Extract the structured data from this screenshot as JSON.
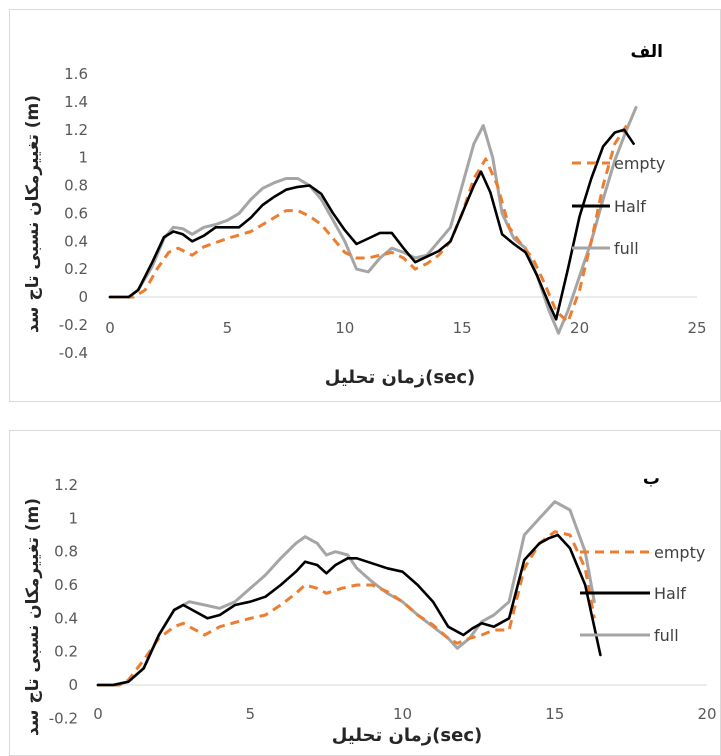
{
  "chart_data": [
    {
      "type": "line",
      "panel_label": "الف",
      "xlabel": "زمان تحلیل(sec)",
      "ylabel": "تغییرمکان نسبی تاج سد (m)",
      "xlim": [
        0,
        25
      ],
      "ylim": [
        -0.4,
        1.6
      ],
      "x_ticks": [
        "0",
        "5",
        "10",
        "15",
        "20",
        "25"
      ],
      "y_ticks": [
        "-0.4",
        "-0.2",
        "0",
        "0.2",
        "0.4",
        "0.6",
        "0.8",
        "1",
        "1.2",
        "1.4",
        "1.6"
      ],
      "grid": false,
      "legend_position": "right",
      "series": [
        {
          "name": "empty",
          "color": "#ed7d31",
          "dash": true,
          "x": [
            0,
            1,
            1.5,
            2,
            2.5,
            2.9,
            3.5,
            4,
            5,
            6,
            7,
            7.5,
            8,
            8.5,
            9,
            9.5,
            10,
            10.5,
            11,
            11.5,
            12,
            12.5,
            13,
            13.5,
            14,
            14.5,
            15,
            15.5,
            16,
            16.5,
            17,
            17.5,
            18,
            18.5,
            19,
            19.5,
            20,
            20.5,
            21,
            21.5,
            22
          ],
          "y": [
            0,
            0,
            0.05,
            0.2,
            0.32,
            0.35,
            0.3,
            0.36,
            0.42,
            0.47,
            0.57,
            0.62,
            0.62,
            0.58,
            0.52,
            0.42,
            0.32,
            0.28,
            0.28,
            0.3,
            0.32,
            0.28,
            0.2,
            0.24,
            0.3,
            0.4,
            0.6,
            0.85,
            0.99,
            0.8,
            0.5,
            0.38,
            0.28,
            0.1,
            -0.1,
            -0.18,
            0.05,
            0.4,
            0.8,
            1.1,
            1.23
          ]
        },
        {
          "name": "Half",
          "color": "#000000",
          "dash": false,
          "x": [
            0,
            0.8,
            1.2,
            1.8,
            2.3,
            2.7,
            3.1,
            3.5,
            4,
            4.5,
            5.5,
            6,
            6.5,
            7,
            7.5,
            8,
            8.5,
            9,
            9.5,
            10,
            10.5,
            11,
            11.5,
            12,
            12.5,
            13,
            13.5,
            14,
            14.5,
            15,
            15.5,
            15.8,
            16.2,
            16.7,
            17.2,
            17.7,
            18.2,
            18.7,
            19,
            19.5,
            20,
            20.5,
            21,
            21.5,
            21.9,
            22.3
          ],
          "y": [
            0,
            0,
            0.05,
            0.25,
            0.43,
            0.47,
            0.45,
            0.4,
            0.44,
            0.5,
            0.5,
            0.57,
            0.66,
            0.72,
            0.77,
            0.79,
            0.8,
            0.74,
            0.6,
            0.48,
            0.38,
            0.42,
            0.46,
            0.46,
            0.35,
            0.25,
            0.29,
            0.33,
            0.4,
            0.6,
            0.8,
            0.9,
            0.75,
            0.45,
            0.38,
            0.32,
            0.15,
            -0.05,
            -0.16,
            0.2,
            0.58,
            0.85,
            1.08,
            1.18,
            1.2,
            1.1
          ]
        },
        {
          "name": "full",
          "color": "#a5a5a5",
          "dash": false,
          "x": [
            0,
            0.8,
            1.2,
            1.8,
            2.3,
            2.7,
            3.1,
            3.5,
            4,
            4.5,
            5,
            5.5,
            6,
            6.5,
            7,
            7.5,
            8,
            8.5,
            9,
            9.5,
            10,
            10.5,
            11,
            11.5,
            12,
            12.5,
            13,
            13.5,
            14,
            14.5,
            15,
            15.5,
            15.9,
            16.3,
            16.7,
            17.2,
            17.7,
            18.2,
            18.7,
            19.1,
            19.5,
            20,
            20.5,
            21,
            21.5,
            22,
            22.4
          ],
          "y": [
            0,
            0,
            0.05,
            0.22,
            0.42,
            0.5,
            0.49,
            0.45,
            0.5,
            0.52,
            0.55,
            0.6,
            0.7,
            0.78,
            0.82,
            0.85,
            0.85,
            0.8,
            0.7,
            0.55,
            0.4,
            0.2,
            0.18,
            0.28,
            0.35,
            0.32,
            0.28,
            0.3,
            0.4,
            0.5,
            0.8,
            1.1,
            1.23,
            1.0,
            0.6,
            0.42,
            0.35,
            0.15,
            -0.1,
            -0.26,
            -0.1,
            0.15,
            0.4,
            0.7,
            0.98,
            1.2,
            1.36
          ]
        }
      ]
    },
    {
      "type": "line",
      "panel_label": "ب",
      "xlabel": "زمان تحلیل(sec)",
      "ylabel": "تغییرمکان نسبی تاج سد (m)",
      "xlim": [
        0,
        20
      ],
      "ylim": [
        -0.2,
        1.2
      ],
      "x_ticks": [
        "0",
        "5",
        "10",
        "15",
        "20"
      ],
      "y_ticks": [
        "-0.2",
        "0",
        "0.2",
        "0.4",
        "0.6",
        "0.8",
        "1",
        "1.2"
      ],
      "grid": false,
      "legend_position": "right",
      "series": [
        {
          "name": "empty",
          "color": "#ed7d31",
          "dash": true,
          "x": [
            0,
            0.7,
            1,
            1.5,
            2,
            2.5,
            2.8,
            3.5,
            4,
            5,
            5.5,
            6,
            6.5,
            6.8,
            7.2,
            7.5,
            8,
            8.5,
            9,
            9.5,
            10,
            10.5,
            11,
            11.5,
            11.8,
            12.2,
            12.6,
            13,
            13.5,
            14,
            14.5,
            15,
            15.5,
            16,
            16.3
          ],
          "y": [
            0,
            0,
            0.03,
            0.15,
            0.28,
            0.35,
            0.37,
            0.3,
            0.35,
            0.4,
            0.42,
            0.48,
            0.55,
            0.6,
            0.58,
            0.55,
            0.58,
            0.6,
            0.6,
            0.56,
            0.5,
            0.42,
            0.36,
            0.28,
            0.25,
            0.28,
            0.3,
            0.33,
            0.33,
            0.7,
            0.85,
            0.92,
            0.9,
            0.7,
            0.4
          ]
        },
        {
          "name": "Half",
          "color": "#000000",
          "dash": false,
          "x": [
            0,
            0.5,
            1,
            1.5,
            2,
            2.5,
            2.8,
            3.1,
            3.6,
            4,
            4.5,
            5,
            5.5,
            6,
            6.5,
            6.8,
            7.2,
            7.5,
            7.8,
            8.2,
            8.5,
            9,
            9.5,
            10,
            10.5,
            11,
            11.5,
            12,
            12.3,
            12.6,
            13,
            13.5,
            14,
            14.5,
            14.8,
            15.1,
            15.5,
            16,
            16.5
          ],
          "y": [
            0,
            0,
            0.02,
            0.1,
            0.3,
            0.45,
            0.48,
            0.45,
            0.4,
            0.42,
            0.48,
            0.5,
            0.53,
            0.6,
            0.68,
            0.74,
            0.72,
            0.67,
            0.72,
            0.76,
            0.76,
            0.73,
            0.7,
            0.68,
            0.6,
            0.5,
            0.35,
            0.3,
            0.34,
            0.37,
            0.35,
            0.4,
            0.75,
            0.85,
            0.88,
            0.9,
            0.82,
            0.6,
            0.18
          ]
        },
        {
          "name": "full",
          "color": "#a5a5a5",
          "dash": false,
          "x": [
            0,
            0.5,
            1,
            1.5,
            2,
            2.5,
            3,
            3.5,
            4,
            4.5,
            5,
            5.5,
            6,
            6.5,
            6.8,
            7.2,
            7.5,
            7.8,
            8.2,
            8.5,
            9,
            9.5,
            10,
            10.5,
            11,
            11.5,
            11.8,
            12.2,
            12.6,
            13,
            13.5,
            14,
            14.5,
            15,
            15.5,
            16,
            16.3
          ],
          "y": [
            0,
            0,
            0.02,
            0.1,
            0.3,
            0.45,
            0.5,
            0.48,
            0.46,
            0.5,
            0.58,
            0.66,
            0.76,
            0.85,
            0.89,
            0.85,
            0.78,
            0.8,
            0.78,
            0.7,
            0.62,
            0.55,
            0.5,
            0.42,
            0.35,
            0.28,
            0.22,
            0.28,
            0.38,
            0.42,
            0.5,
            0.9,
            1.0,
            1.1,
            1.05,
            0.8,
            0.5
          ]
        }
      ]
    }
  ]
}
